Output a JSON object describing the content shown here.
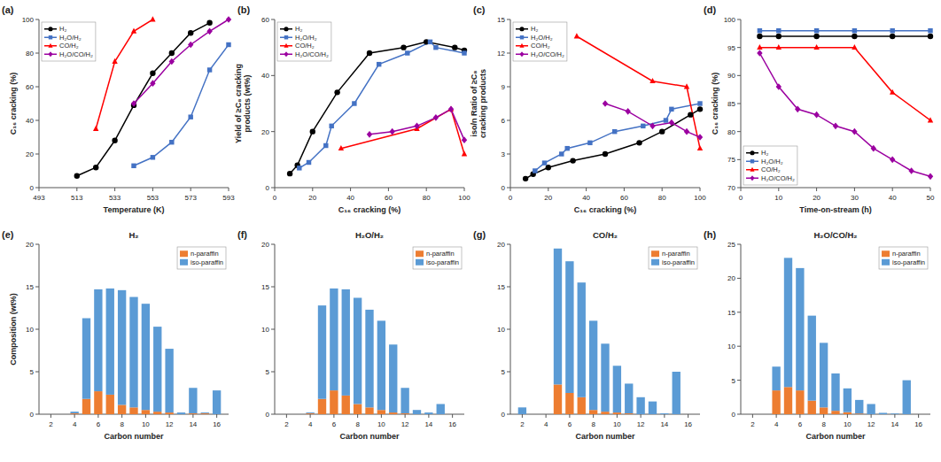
{
  "chart_data": [
    {
      "type": "line",
      "annotations": [
        "(a)"
      ],
      "x_label": "Temperature (K)",
      "y_label": "C₁₆ cracking (%)",
      "xlim": [
        493,
        593
      ],
      "xticks": [
        493,
        513,
        533,
        553,
        573,
        593
      ],
      "ylim": [
        0,
        100
      ],
      "yticks": [
        0,
        20,
        40,
        60,
        80,
        100
      ],
      "grid": false,
      "legend": "upper left",
      "series": [
        {
          "name": "H₂",
          "color": "#000000",
          "marker": "circle",
          "x": [
            513,
            523,
            533,
            543,
            553,
            563,
            573,
            583
          ],
          "values": [
            7,
            12,
            28,
            49,
            68,
            80,
            92,
            98
          ]
        },
        {
          "name": "H₂O/H₂",
          "color": "#4472C4",
          "marker": "square",
          "x": [
            543,
            553,
            563,
            573,
            583,
            593
          ],
          "values": [
            13,
            18,
            27,
            42,
            70,
            85
          ]
        },
        {
          "name": "CO/H₂",
          "color": "#FF0000",
          "marker": "triangle",
          "x": [
            523,
            533,
            543,
            553
          ],
          "values": [
            35,
            75,
            93,
            100
          ]
        },
        {
          "name": "H₂O/CO/H₂",
          "color": "#9B00A0",
          "marker": "diamond",
          "x": [
            543,
            553,
            563,
            573,
            583,
            593
          ],
          "values": [
            50,
            62,
            75,
            85,
            93,
            100
          ]
        }
      ]
    },
    {
      "type": "line",
      "annotations": [
        "(b)"
      ],
      "x_label": "C₁₆ cracking (%)",
      "y_label": "Yield of ≥C₈ cracking\nproducts (wt%)",
      "xlim": [
        0,
        100
      ],
      "xticks": [
        0,
        20,
        40,
        60,
        80,
        100
      ],
      "ylim": [
        0,
        60
      ],
      "yticks": [
        0,
        20,
        40,
        60
      ],
      "grid": false,
      "legend": "upper left",
      "series": [
        {
          "name": "H₂",
          "color": "#000000",
          "marker": "circle",
          "x": [
            8,
            12,
            20,
            33,
            50,
            68,
            80,
            95,
            100
          ],
          "values": [
            5,
            8,
            20,
            34,
            48,
            50,
            52,
            50,
            49
          ]
        },
        {
          "name": "H₂O/H₂",
          "color": "#4472C4",
          "marker": "square",
          "x": [
            13,
            18,
            27,
            30,
            42,
            55,
            70,
            82,
            85,
            100
          ],
          "values": [
            7,
            9,
            15,
            22,
            30,
            44,
            48,
            52,
            50,
            48
          ]
        },
        {
          "name": "CO/H₂",
          "color": "#FF0000",
          "marker": "triangle",
          "x": [
            35,
            75,
            93,
            100
          ],
          "values": [
            14,
            21,
            28,
            12
          ]
        },
        {
          "name": "H₂O/CO/H₂",
          "color": "#9B00A0",
          "marker": "diamond",
          "x": [
            50,
            62,
            75,
            85,
            93,
            100
          ],
          "values": [
            19,
            20,
            22,
            25,
            28,
            17
          ]
        }
      ]
    },
    {
      "type": "line",
      "annotations": [
        "(c)"
      ],
      "x_label": "C₁₆ cracking (%)",
      "y_label": "iso/n Ratio of ≥C₈\ncracking products",
      "xlim": [
        0,
        100
      ],
      "xticks": [
        0,
        20,
        40,
        60,
        80,
        100
      ],
      "ylim": [
        0,
        15
      ],
      "yticks": [
        0,
        3,
        6,
        9,
        12,
        15
      ],
      "grid": false,
      "legend": "upper left",
      "series": [
        {
          "name": "H₂",
          "color": "#000000",
          "marker": "circle",
          "x": [
            8,
            12,
            20,
            33,
            50,
            68,
            80,
            95,
            100
          ],
          "values": [
            0.8,
            1.2,
            1.8,
            2.4,
            3.0,
            4.0,
            5.0,
            6.5,
            7.0
          ]
        },
        {
          "name": "H₂O/H₂",
          "color": "#4472C4",
          "marker": "square",
          "x": [
            13,
            18,
            27,
            30,
            42,
            55,
            70,
            82,
            85,
            100
          ],
          "values": [
            1.5,
            2.2,
            3.0,
            3.5,
            4.0,
            5.0,
            5.5,
            6.0,
            7.0,
            7.5
          ]
        },
        {
          "name": "CO/H₂",
          "color": "#FF0000",
          "marker": "triangle",
          "x": [
            35,
            75,
            93,
            100
          ],
          "values": [
            13.5,
            9.5,
            9.0,
            3.5
          ]
        },
        {
          "name": "H₂O/CO/H₂",
          "color": "#9B00A0",
          "marker": "diamond",
          "x": [
            50,
            62,
            75,
            85,
            93,
            100
          ],
          "values": [
            7.5,
            6.8,
            5.5,
            5.8,
            5.0,
            4.5
          ]
        }
      ]
    },
    {
      "type": "line",
      "annotations": [
        "(d)"
      ],
      "x_label": "Time-on-stream (h)",
      "y_label": "C₁₆ cracking (%)",
      "xlim": [
        0,
        50
      ],
      "xticks": [
        0,
        10,
        20,
        30,
        40,
        50
      ],
      "ylim": [
        70,
        100
      ],
      "yticks": [
        70,
        75,
        80,
        85,
        90,
        95,
        100
      ],
      "grid": false,
      "legend": "lower left",
      "series": [
        {
          "name": "H₂",
          "color": "#000000",
          "marker": "circle",
          "x": [
            5,
            10,
            20,
            30,
            40,
            50
          ],
          "values": [
            97,
            97,
            97,
            97,
            97,
            97
          ]
        },
        {
          "name": "H₂O/H₂",
          "color": "#4472C4",
          "marker": "square",
          "x": [
            5,
            10,
            20,
            30,
            40,
            50
          ],
          "values": [
            98,
            98,
            98,
            98,
            98,
            98
          ]
        },
        {
          "name": "CO/H₂",
          "color": "#FF0000",
          "marker": "triangle",
          "x": [
            5,
            10,
            20,
            30,
            40,
            50
          ],
          "values": [
            95,
            95,
            95,
            95,
            87,
            82
          ]
        },
        {
          "name": "H₂O/CO/H₂",
          "color": "#9B00A0",
          "marker": "diamond",
          "x": [
            5,
            10,
            15,
            20,
            25,
            30,
            35,
            40,
            45,
            50
          ],
          "values": [
            94,
            88,
            84,
            83,
            81,
            80,
            77,
            75,
            73,
            72
          ]
        }
      ]
    },
    {
      "type": "bar",
      "stacked": true,
      "annotations": [
        "(e)"
      ],
      "title": "H₂",
      "x_label": "Carbon number",
      "y_label": "Composition (wt%)",
      "x": [
        2,
        3,
        4,
        5,
        6,
        7,
        8,
        9,
        10,
        11,
        12,
        13,
        14,
        15,
        16
      ],
      "xlim": [
        1,
        17
      ],
      "xticks": [
        2,
        4,
        6,
        8,
        10,
        12,
        14,
        16
      ],
      "ylim": [
        0,
        20
      ],
      "yticks": [
        0,
        5,
        10,
        15,
        20
      ],
      "grid": false,
      "legend": "upper right",
      "series": [
        {
          "name": "n-paraffin",
          "color": "#ED7D31",
          "values": [
            0.0,
            0.0,
            0.1,
            1.8,
            2.7,
            2.3,
            1.1,
            0.8,
            0.5,
            0.3,
            0.2,
            0.0,
            0.1,
            0.1,
            0.0
          ]
        },
        {
          "name": "iso-paraffin",
          "color": "#5B9BD5",
          "values": [
            0.0,
            0.0,
            0.2,
            9.5,
            12.0,
            12.5,
            13.5,
            13.0,
            12.5,
            10.0,
            7.5,
            0.2,
            3.0,
            0.1,
            2.8
          ]
        }
      ]
    },
    {
      "type": "bar",
      "stacked": true,
      "annotations": [
        "(f)"
      ],
      "title": "H₂O/H₂",
      "x_label": "Carbon number",
      "x": [
        2,
        3,
        4,
        5,
        6,
        7,
        8,
        9,
        10,
        11,
        12,
        13,
        14,
        15
      ],
      "xlim": [
        1,
        17
      ],
      "xticks": [
        2,
        4,
        6,
        8,
        10,
        12,
        14,
        16
      ],
      "ylim": [
        0,
        20
      ],
      "yticks": [
        0,
        5,
        10,
        15,
        20
      ],
      "grid": false,
      "legend": "upper right",
      "series": [
        {
          "name": "n-paraffin",
          "color": "#ED7D31",
          "values": [
            0.0,
            0.0,
            0.1,
            1.8,
            2.8,
            2.2,
            1.2,
            0.8,
            0.5,
            0.2,
            0.1,
            0.0,
            0.0,
            0.0
          ]
        },
        {
          "name": "iso-paraffin",
          "color": "#5B9BD5",
          "values": [
            0.0,
            0.0,
            0.1,
            11.0,
            12.0,
            12.5,
            12.5,
            11.5,
            10.5,
            8.0,
            3.0,
            0.5,
            0.2,
            1.2
          ]
        }
      ]
    },
    {
      "type": "bar",
      "stacked": true,
      "annotations": [
        "(g)"
      ],
      "title": "CO/H₂",
      "x_label": "Carbon number",
      "x": [
        2,
        3,
        4,
        5,
        6,
        7,
        8,
        9,
        10,
        11,
        12,
        13,
        14,
        15
      ],
      "xlim": [
        1,
        17
      ],
      "xticks": [
        2,
        4,
        6,
        8,
        10,
        12,
        14,
        16
      ],
      "ylim": [
        0,
        20
      ],
      "yticks": [
        0,
        5,
        10,
        15,
        20
      ],
      "grid": false,
      "legend": "upper right",
      "series": [
        {
          "name": "n-paraffin",
          "color": "#ED7D31",
          "values": [
            0.0,
            0.0,
            0.0,
            3.5,
            2.5,
            2.0,
            0.5,
            0.3,
            0.2,
            0.1,
            0.0,
            0.0,
            0.0,
            0.0
          ]
        },
        {
          "name": "iso-paraffin",
          "color": "#5B9BD5",
          "values": [
            0.8,
            0.0,
            0.0,
            16.0,
            15.5,
            13.5,
            10.5,
            8.0,
            5.5,
            3.5,
            2.0,
            1.5,
            0.1,
            5.0
          ]
        }
      ]
    },
    {
      "type": "bar",
      "stacked": true,
      "annotations": [
        "(h)"
      ],
      "title": "H₂O/CO/H₂",
      "x_label": "Carbon number",
      "x": [
        2,
        3,
        4,
        5,
        6,
        7,
        8,
        9,
        10,
        11,
        12,
        13,
        14,
        15
      ],
      "xlim": [
        1,
        17
      ],
      "xticks": [
        2,
        4,
        6,
        8,
        10,
        12,
        14,
        16
      ],
      "ylim": [
        0,
        25
      ],
      "yticks": [
        0,
        5,
        10,
        15,
        20,
        25
      ],
      "grid": false,
      "legend": "upper right",
      "series": [
        {
          "name": "n-paraffin",
          "color": "#ED7D31",
          "values": [
            0.0,
            0.0,
            3.5,
            4.0,
            3.5,
            2.0,
            1.0,
            0.5,
            0.3,
            0.1,
            0.0,
            0.0,
            0.0,
            0.0
          ]
        },
        {
          "name": "iso-paraffin",
          "color": "#5B9BD5",
          "values": [
            0.0,
            0.0,
            3.5,
            19.0,
            18.0,
            12.5,
            9.5,
            5.5,
            3.5,
            2.0,
            1.5,
            0.2,
            0.1,
            5.0
          ]
        }
      ]
    }
  ]
}
